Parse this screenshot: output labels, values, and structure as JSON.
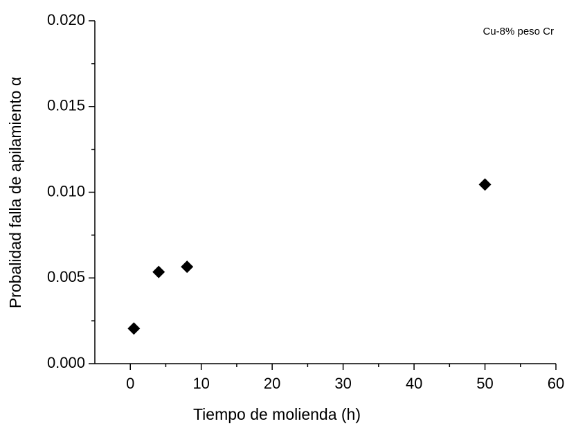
{
  "chart_data": {
    "type": "scatter",
    "x_label": "Tiempo de molienda (h)",
    "y_label": "Probalidad falla de apilamiento α",
    "annotation": "Cu-8% peso Cr",
    "xlim": [
      -5,
      60
    ],
    "xticks": [
      0,
      10,
      20,
      30,
      40,
      50,
      60
    ],
    "ylim": [
      0,
      0.02
    ],
    "yticks": [
      {
        "value": 0,
        "label": "0.000"
      },
      0.005,
      {
        "value": 0.01,
        "label": "0.010"
      },
      0.015,
      {
        "value": 0.02,
        "label": "0.020"
      }
    ],
    "marker": "diamond",
    "color": "#000000",
    "x": [
      0.5,
      4,
      8,
      50
    ],
    "values": [
      0.00205,
      0.00535,
      0.00565,
      0.01045
    ]
  }
}
